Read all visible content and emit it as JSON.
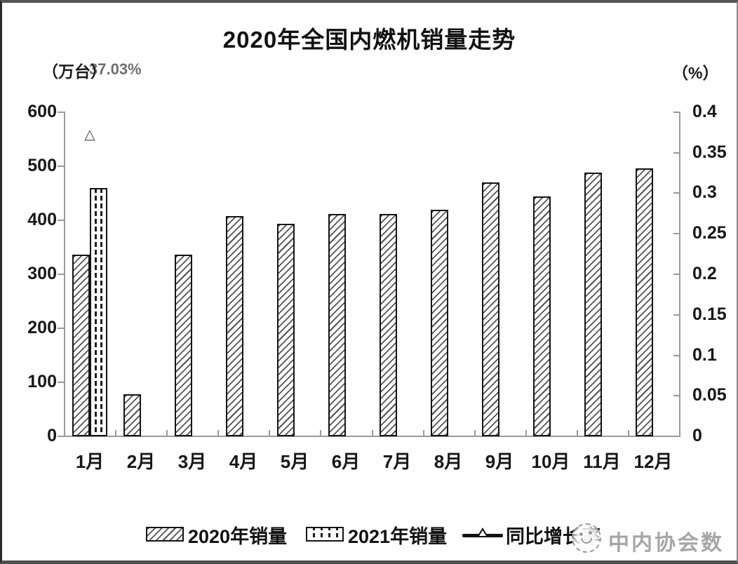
{
  "chart_data": {
    "type": "bar",
    "title": "2020年全国内燃机销量走势",
    "categories": [
      "1月",
      "2月",
      "3月",
      "4月",
      "5月",
      "6月",
      "7月",
      "8月",
      "9月",
      "10月",
      "11月",
      "12月"
    ],
    "series": [
      {
        "name": "2020年销量",
        "type": "bar",
        "axis": "left",
        "pattern": "diagonal-hatch",
        "values": [
          335,
          76,
          335,
          406,
          392,
          410,
          410,
          418,
          469,
          443,
          487,
          495
        ]
      },
      {
        "name": "2021年销量",
        "type": "bar",
        "axis": "left",
        "pattern": "vertical-dash",
        "values": [
          459,
          null,
          null,
          null,
          null,
          null,
          null,
          null,
          null,
          null,
          null,
          null
        ]
      },
      {
        "name": "同比增长率",
        "type": "point",
        "axis": "right",
        "marker": "open-triangle",
        "marker_glyph": "△",
        "data_label": "37.03%",
        "values": [
          0.3703,
          null,
          null,
          null,
          null,
          null,
          null,
          null,
          null,
          null,
          null,
          null
        ]
      }
    ],
    "left_axis": {
      "unit": "（万台）",
      "min": 0,
      "max": 600,
      "step": 100,
      "tick_labels": [
        "0",
        "100",
        "200",
        "300",
        "400",
        "500",
        "600"
      ]
    },
    "right_axis": {
      "unit": "（%）",
      "min": 0,
      "max": 0.4,
      "step": 0.05,
      "tick_labels": [
        "0",
        "0.05",
        "0.1",
        "0.15",
        "0.2",
        "0.25",
        "0.3",
        "0.35",
        "0.4"
      ]
    },
    "grid": false,
    "legend_position": "bottom"
  },
  "watermark": {
    "text": "中内协会数据"
  }
}
